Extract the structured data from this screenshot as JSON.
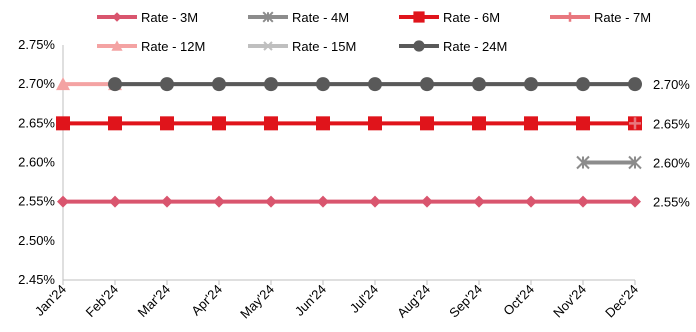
{
  "chart_data": {
    "type": "line",
    "categories": [
      "Jan'24",
      "Feb'24",
      "Mar'24",
      "Apr'24",
      "May'24",
      "Jun'24",
      "Jul'24",
      "Aug'24",
      "Sep'24",
      "Oct'24",
      "Nov'24",
      "Dec'24"
    ],
    "ylim": [
      2.45,
      2.75
    ],
    "yticks": [
      "2.45%",
      "2.50%",
      "2.55%",
      "2.60%",
      "2.65%",
      "2.70%",
      "2.75%"
    ],
    "grid": false,
    "legend_position": "top",
    "series": [
      {
        "name": "Rate - 3M",
        "color": "#D9556E",
        "marker": "diamond",
        "values": [
          2.55,
          2.55,
          2.55,
          2.55,
          2.55,
          2.55,
          2.55,
          2.55,
          2.55,
          2.55,
          2.55,
          2.55
        ]
      },
      {
        "name": "Rate - 4M",
        "color": "#8C8C8C",
        "marker": "star",
        "values": [
          null,
          null,
          null,
          null,
          null,
          null,
          null,
          null,
          null,
          null,
          2.6,
          2.6
        ]
      },
      {
        "name": "Rate - 6M",
        "color": "#E0141B",
        "marker": "square",
        "values": [
          2.65,
          2.65,
          2.65,
          2.65,
          2.65,
          2.65,
          2.65,
          2.65,
          2.65,
          2.65,
          2.65,
          2.65
        ]
      },
      {
        "name": "Rate - 7M",
        "color": "#E8777E",
        "marker": "plus",
        "values": [
          null,
          null,
          null,
          null,
          null,
          null,
          null,
          null,
          null,
          null,
          null,
          2.65
        ]
      },
      {
        "name": "Rate - 12M",
        "color": "#F4A3A3",
        "marker": "triangle",
        "values": [
          2.7,
          2.7,
          null,
          null,
          null,
          null,
          null,
          null,
          null,
          null,
          null,
          null
        ]
      },
      {
        "name": "Rate - 15M",
        "color": "#BFBFBF",
        "marker": "x",
        "values": [
          null,
          2.7,
          2.7,
          2.7,
          2.7,
          2.7,
          2.7,
          2.7,
          2.7,
          2.7,
          2.7,
          2.7
        ]
      },
      {
        "name": "Rate - 24M",
        "color": "#595959",
        "marker": "circle",
        "values": [
          null,
          2.7,
          2.7,
          2.7,
          2.7,
          2.7,
          2.7,
          2.7,
          2.7,
          2.7,
          2.7,
          2.7
        ]
      }
    ],
    "end_labels": [
      {
        "value": 2.7,
        "text": "2.70%"
      },
      {
        "value": 2.65,
        "text": "2.65%"
      },
      {
        "value": 2.6,
        "text": "2.60%"
      },
      {
        "value": 2.55,
        "text": "2.55%"
      }
    ]
  }
}
